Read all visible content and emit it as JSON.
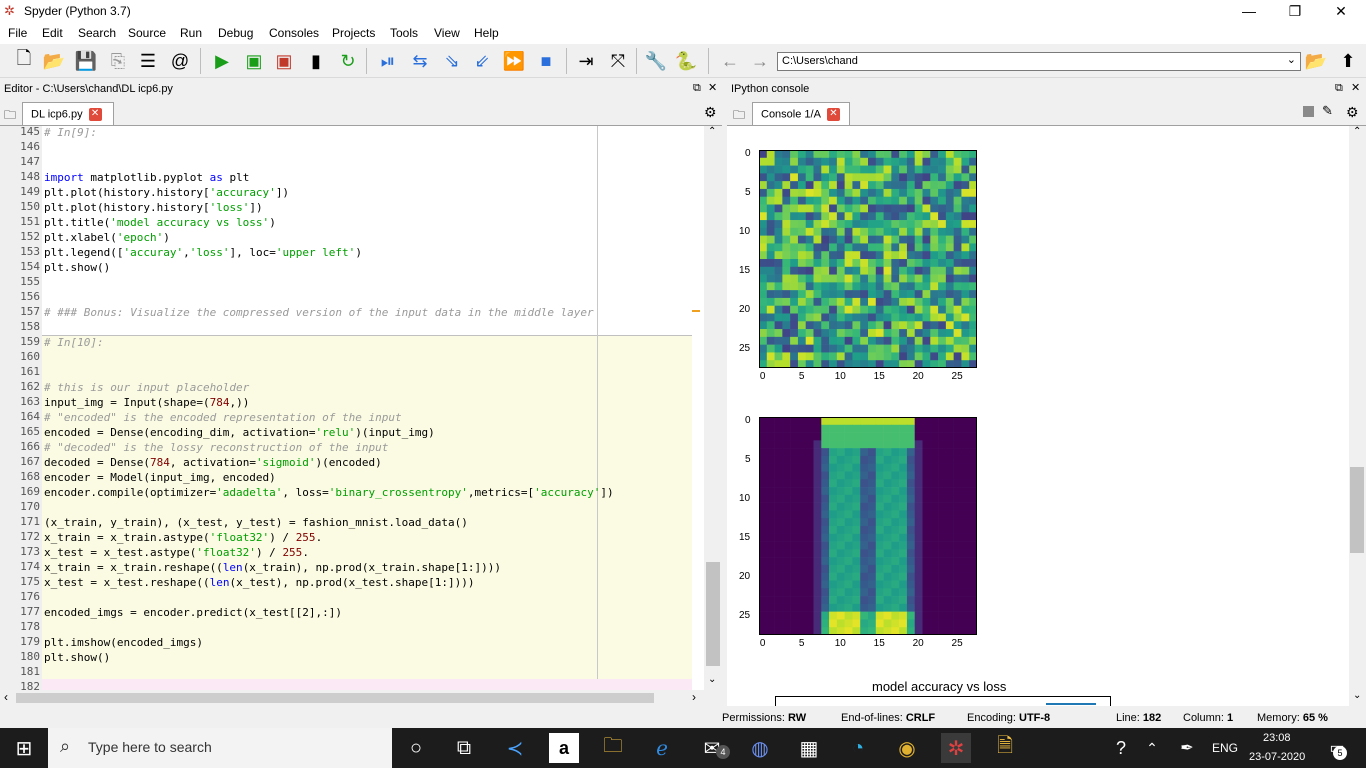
{
  "window": {
    "title": "Spyder (Python 3.7)",
    "min": "—",
    "max": "❐",
    "close": "✕"
  },
  "menu": [
    "File",
    "Edit",
    "Search",
    "Source",
    "Run",
    "Debug",
    "Consoles",
    "Projects",
    "Tools",
    "View",
    "Help"
  ],
  "toolbar": {
    "path": "C:\\Users\\chand"
  },
  "editor": {
    "header": "Editor - C:\\Users\\chand\\DL icp6.py",
    "tab": "DL icp6.py",
    "lines": [
      {
        "n": "145",
        "t": "# In[9]:"
      },
      {
        "n": "146",
        "t": ""
      },
      {
        "n": "147",
        "t": ""
      },
      {
        "n": "148",
        "t": "import matplotlib.pyplot as plt"
      },
      {
        "n": "149",
        "t": "plt.plot(history.history['accuracy'])"
      },
      {
        "n": "150",
        "t": "plt.plot(history.history['loss'])"
      },
      {
        "n": "151",
        "t": "plt.title('model accuracy vs loss')"
      },
      {
        "n": "152",
        "t": "plt.xlabel('epoch')"
      },
      {
        "n": "153",
        "t": "plt.legend(['accuray','loss'], loc='upper left')"
      },
      {
        "n": "154",
        "t": "plt.show()"
      },
      {
        "n": "155",
        "t": ""
      },
      {
        "n": "156",
        "t": ""
      },
      {
        "n": "157",
        "t": "# ### Bonus: Visualize the compressed version of the input data in the middle layer"
      },
      {
        "n": "158",
        "t": ""
      },
      {
        "n": "159",
        "t": "# In[10]:"
      },
      {
        "n": "160",
        "t": ""
      },
      {
        "n": "161",
        "t": ""
      },
      {
        "n": "162",
        "t": "# this is our input placeholder"
      },
      {
        "n": "163",
        "t": "input_img = Input(shape=(784,))"
      },
      {
        "n": "164",
        "t": "# \"encoded\" is the encoded representation of the input"
      },
      {
        "n": "165",
        "t": "encoded = Dense(encoding_dim, activation='relu')(input_img)"
      },
      {
        "n": "166",
        "t": "# \"decoded\" is the lossy reconstruction of the input"
      },
      {
        "n": "167",
        "t": "decoded = Dense(784, activation='sigmoid')(encoded)"
      },
      {
        "n": "168",
        "t": "encoder = Model(input_img, encoded)"
      },
      {
        "n": "169",
        "t": "encoder.compile(optimizer='adadelta', loss='binary_crossentropy',metrics=['accuracy'])"
      },
      {
        "n": "170",
        "t": ""
      },
      {
        "n": "171",
        "t": "(x_train, y_train), (x_test, y_test) = fashion_mnist.load_data()"
      },
      {
        "n": "172",
        "t": "x_train = x_train.astype('float32') / 255."
      },
      {
        "n": "173",
        "t": "x_test = x_test.astype('float32') / 255."
      },
      {
        "n": "174",
        "t": "x_train = x_train.reshape((len(x_train), np.prod(x_train.shape[1:])))"
      },
      {
        "n": "175",
        "t": "x_test = x_test.reshape((len(x_test), np.prod(x_test.shape[1:])))"
      },
      {
        "n": "176",
        "t": ""
      },
      {
        "n": "177",
        "t": "encoded_imgs = encoder.predict(x_test[[2],:])"
      },
      {
        "n": "178",
        "t": ""
      },
      {
        "n": "179",
        "t": "plt.imshow(encoded_imgs)"
      },
      {
        "n": "180",
        "t": "plt.show()"
      },
      {
        "n": "181",
        "t": ""
      },
      {
        "n": "182",
        "t": ""
      }
    ]
  },
  "console": {
    "header": "IPython console",
    "tab": "Console 1/A",
    "plot1": {
      "yticks": [
        "0",
        "5",
        "10",
        "15",
        "20",
        "25"
      ],
      "xticks": [
        "0",
        "5",
        "10",
        "15",
        "20",
        "25"
      ]
    },
    "plot2": {
      "yticks": [
        "0",
        "5",
        "10",
        "15",
        "20",
        "25"
      ],
      "xticks": [
        "0",
        "5",
        "10",
        "15",
        "20",
        "25"
      ]
    },
    "plot3_title": "model accuracy vs loss"
  },
  "status": {
    "permissions_label": "Permissions:",
    "permissions": "RW",
    "eol_label": "End-of-lines:",
    "eol": "CRLF",
    "encoding_label": "Encoding:",
    "encoding": "UTF-8",
    "line_label": "Line:",
    "line": "182",
    "column_label": "Column:",
    "column": "1",
    "memory_label": "Memory:",
    "memory": "65 %"
  },
  "taskbar": {
    "search_placeholder": "Type here to search",
    "lang": "ENG",
    "time": "23:08",
    "date": "23-07-2020",
    "notif_count": "5",
    "mail_count": "4"
  },
  "colors": {
    "viridis_dark": "#440154",
    "viridis_yellow": "#fde725"
  }
}
